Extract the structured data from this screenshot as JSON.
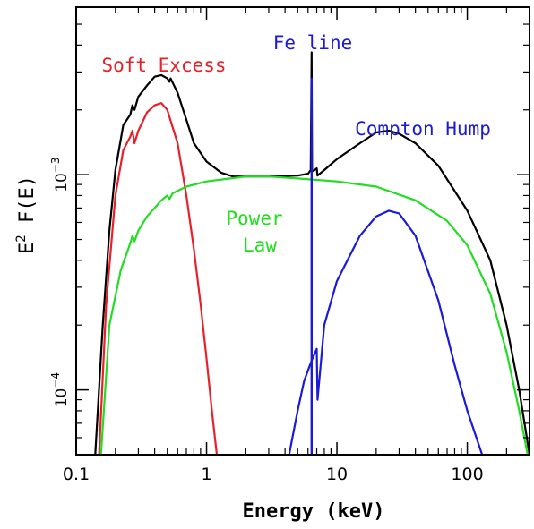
{
  "chart_data": {
    "type": "line",
    "title": "",
    "xlabel": "Energy (keV)",
    "ylabel": "E^2 F(E)",
    "x_scale": "log",
    "y_scale": "log",
    "xlim": [
      0.1,
      300
    ],
    "ylim": [
      5e-05,
      0.006
    ],
    "x_ticks": [
      {
        "value": 0.1,
        "label": "0.1"
      },
      {
        "value": 1,
        "label": "1"
      },
      {
        "value": 10,
        "label": "10"
      },
      {
        "value": 100,
        "label": "100"
      }
    ],
    "y_ticks": [
      {
        "value": 0.0001,
        "base": "10",
        "exp": "−4"
      },
      {
        "value": 0.001,
        "base": "10",
        "exp": "−3"
      }
    ],
    "grid": false,
    "annotations": [
      {
        "text": "Soft Excess",
        "color": "#e8202a",
        "series": "soft"
      },
      {
        "text": "Fe line",
        "color": "#1a1ad8",
        "series": "fe"
      },
      {
        "text": "Compton Hump",
        "color": "#1a1ad8",
        "series": "compton"
      },
      {
        "text": "Power",
        "color": "#22dd22",
        "series": "power"
      },
      {
        "text": "Law",
        "color": "#22dd22",
        "series": "power"
      }
    ],
    "series": [
      {
        "id": "total",
        "color": "#000000",
        "points": [
          [
            0.14,
            5e-05
          ],
          [
            0.16,
            0.0002
          ],
          [
            0.18,
            0.00055
          ],
          [
            0.2,
            0.00105
          ],
          [
            0.23,
            0.0017
          ],
          [
            0.26,
            0.0019
          ],
          [
            0.27,
            0.0021
          ],
          [
            0.28,
            0.002
          ],
          [
            0.3,
            0.0023
          ],
          [
            0.35,
            0.0026
          ],
          [
            0.4,
            0.00285
          ],
          [
            0.45,
            0.0029
          ],
          [
            0.5,
            0.0028
          ],
          [
            0.52,
            0.0027
          ],
          [
            0.53,
            0.0028
          ],
          [
            0.6,
            0.0024
          ],
          [
            0.7,
            0.0018
          ],
          [
            0.8,
            0.0014
          ],
          [
            1.0,
            0.00115
          ],
          [
            1.3,
            0.00102
          ],
          [
            1.6,
            0.00098
          ],
          [
            2.0,
            0.00098
          ],
          [
            3.0,
            0.00098
          ],
          [
            5.0,
            0.00099
          ],
          [
            6.0,
            0.00101
          ],
          [
            6.3,
            0.00105
          ],
          [
            6.4,
            0.0037
          ],
          [
            6.45,
            0.00105
          ],
          [
            6.6,
            0.00104
          ],
          [
            7.0,
            0.00107
          ],
          [
            7.1,
            0.00099
          ],
          [
            8.0,
            0.00105
          ],
          [
            10.0,
            0.00118
          ],
          [
            15.0,
            0.0014
          ],
          [
            20.0,
            0.00157
          ],
          [
            25.0,
            0.0016
          ],
          [
            30.0,
            0.00155
          ],
          [
            40.0,
            0.0014
          ],
          [
            60.0,
            0.0011
          ],
          [
            100.0,
            0.00068
          ],
          [
            150.0,
            0.0004
          ],
          [
            200.0,
            0.0002
          ],
          [
            250.0,
            0.0001
          ],
          [
            300.0,
            5e-05
          ]
        ]
      },
      {
        "id": "soft",
        "color": "#e8202a",
        "points": [
          [
            0.15,
            5e-05
          ],
          [
            0.17,
            0.00025
          ],
          [
            0.2,
            0.0008
          ],
          [
            0.23,
            0.0013
          ],
          [
            0.26,
            0.0015
          ],
          [
            0.27,
            0.0016
          ],
          [
            0.28,
            0.0014
          ],
          [
            0.3,
            0.0016
          ],
          [
            0.35,
            0.00195
          ],
          [
            0.4,
            0.0021
          ],
          [
            0.45,
            0.00215
          ],
          [
            0.5,
            0.002
          ],
          [
            0.6,
            0.0014
          ],
          [
            0.7,
            0.0008
          ],
          [
            0.8,
            0.00045
          ],
          [
            0.9,
            0.00025
          ],
          [
            1.0,
            0.00014
          ],
          [
            1.1,
            8e-05
          ],
          [
            1.2,
            5e-05
          ]
        ]
      },
      {
        "id": "power",
        "color": "#22dd22",
        "points": [
          [
            0.155,
            5e-05
          ],
          [
            0.18,
            0.0002
          ],
          [
            0.22,
            0.00036
          ],
          [
            0.26,
            0.00048
          ],
          [
            0.27,
            0.00052
          ],
          [
            0.28,
            0.00049
          ],
          [
            0.3,
            0.00055
          ],
          [
            0.35,
            0.00064
          ],
          [
            0.4,
            0.0007
          ],
          [
            0.45,
            0.00076
          ],
          [
            0.5,
            0.0008
          ],
          [
            0.52,
            0.00077
          ],
          [
            0.55,
            0.00082
          ],
          [
            0.7,
            0.00088
          ],
          [
            1.0,
            0.00093
          ],
          [
            2.0,
            0.00098
          ],
          [
            3.0,
            0.00098
          ],
          [
            5.0,
            0.00096
          ],
          [
            10.0,
            0.00093
          ],
          [
            20.0,
            0.00088
          ],
          [
            40.0,
            0.00076
          ],
          [
            70.0,
            0.00061
          ],
          [
            100.0,
            0.00047
          ],
          [
            150.0,
            0.00028
          ],
          [
            200.0,
            0.00015
          ],
          [
            250.0,
            8e-05
          ],
          [
            290.0,
            5e-05
          ]
        ]
      },
      {
        "id": "compton",
        "color": "#1a1ad8",
        "points": [
          [
            4.3,
            5e-05
          ],
          [
            5.0,
            8e-05
          ],
          [
            5.6,
            0.00011
          ],
          [
            6.2,
            0.00013
          ],
          [
            6.5,
            0.00014
          ],
          [
            7.0,
            0.000155
          ],
          [
            7.1,
            9e-05
          ],
          [
            8.0,
            0.0002
          ],
          [
            10.0,
            0.00032
          ],
          [
            15.0,
            0.00052
          ],
          [
            20.0,
            0.00064
          ],
          [
            25.0,
            0.00068
          ],
          [
            30.0,
            0.00066
          ],
          [
            40.0,
            0.00052
          ],
          [
            60.0,
            0.00026
          ],
          [
            80.0,
            0.00013
          ],
          [
            100.0,
            8e-05
          ],
          [
            130.0,
            5e-05
          ]
        ]
      },
      {
        "id": "fe",
        "color": "#1a1ad8",
        "points": [
          [
            6.38,
            5e-05
          ],
          [
            6.38,
            0.0028
          ],
          [
            6.42,
            0.0028
          ],
          [
            6.42,
            5e-05
          ]
        ]
      }
    ]
  }
}
